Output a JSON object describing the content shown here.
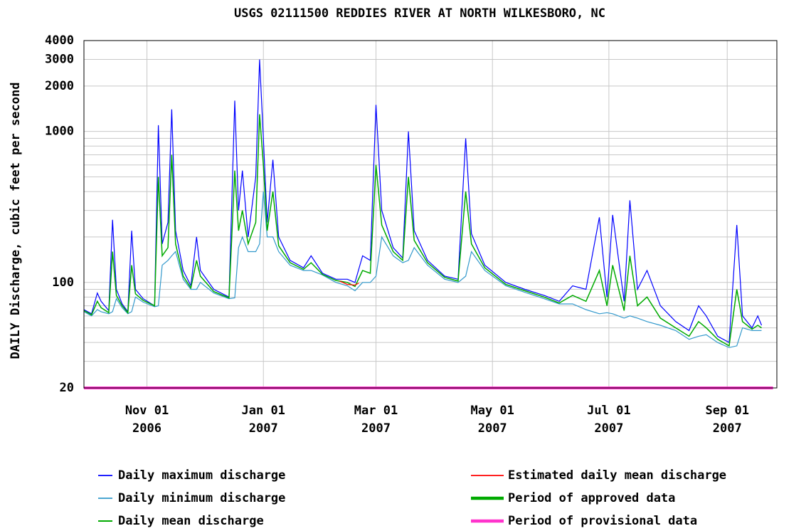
{
  "chart_data": {
    "type": "line",
    "title": "USGS 02111500 REDDIES RIVER AT NORTH WILKESBORO, NC",
    "y_label": "DAILY Discharge, cubic feet per second",
    "log_y": true,
    "grid": true,
    "xlim": [
      "2006-09-29",
      "2007-09-27"
    ],
    "xticks": [
      {
        "value": "2006-11-01",
        "label": "Nov 01\n2006"
      },
      {
        "value": "2007-01-01",
        "label": "Jan 01\n2007"
      },
      {
        "value": "2007-03-01",
        "label": "Mar 01\n2007"
      },
      {
        "value": "2007-05-01",
        "label": "May 01\n2007"
      },
      {
        "value": "2007-07-01",
        "label": "Jul 01\n2007"
      },
      {
        "value": "2007-09-01",
        "label": "Sep 01\n2007"
      }
    ],
    "ylim": [
      20,
      4000
    ],
    "yticks": [
      20,
      100,
      1000,
      2000,
      3000,
      4000
    ],
    "yminor_ticks": [
      30,
      40,
      50,
      60,
      70,
      80,
      90,
      200,
      300,
      400,
      500,
      600,
      700,
      800,
      900
    ],
    "x": [
      "2006-09-29",
      "2006-10-03",
      "2006-10-06",
      "2006-10-08",
      "2006-10-12",
      "2006-10-14",
      "2006-10-16",
      "2006-10-19",
      "2006-10-22",
      "2006-10-24",
      "2006-10-26",
      "2006-10-30",
      "2006-11-05",
      "2006-11-07",
      "2006-11-09",
      "2006-11-12",
      "2006-11-14",
      "2006-11-16",
      "2006-11-20",
      "2006-11-24",
      "2006-11-27",
      "2006-11-29",
      "2006-12-06",
      "2006-12-14",
      "2006-12-17",
      "2006-12-19",
      "2006-12-21",
      "2006-12-24",
      "2006-12-28",
      "2006-12-30",
      "2007-01-01",
      "2007-01-03",
      "2007-01-06",
      "2007-01-09",
      "2007-01-15",
      "2007-01-22",
      "2007-01-26",
      "2007-02-01",
      "2007-02-08",
      "2007-02-14",
      "2007-02-18",
      "2007-02-22",
      "2007-02-26",
      "2007-03-01",
      "2007-03-04",
      "2007-03-10",
      "2007-03-15",
      "2007-03-18",
      "2007-03-21",
      "2007-03-28",
      "2007-04-06",
      "2007-04-13",
      "2007-04-17",
      "2007-04-20",
      "2007-04-27",
      "2007-05-08",
      "2007-05-18",
      "2007-05-28",
      "2007-06-05",
      "2007-06-12",
      "2007-06-19",
      "2007-06-26",
      "2007-06-30",
      "2007-07-03",
      "2007-07-09",
      "2007-07-12",
      "2007-07-16",
      "2007-07-21",
      "2007-07-28",
      "2007-08-05",
      "2007-08-12",
      "2007-08-17",
      "2007-08-21",
      "2007-08-27",
      "2007-09-02",
      "2007-09-06",
      "2007-09-09",
      "2007-09-14",
      "2007-09-17",
      "2007-09-19"
    ],
    "series": [
      {
        "name": "Daily maximum discharge",
        "color": "#0000ff",
        "width": 1.2,
        "values": [
          66,
          62,
          85,
          75,
          65,
          260,
          90,
          72,
          64,
          220,
          90,
          78,
          70,
          1100,
          180,
          250,
          1400,
          220,
          120,
          95,
          200,
          120,
          90,
          80,
          1600,
          300,
          550,
          200,
          500,
          3000,
          900,
          250,
          650,
          200,
          140,
          125,
          150,
          115,
          105,
          105,
          100,
          150,
          140,
          1500,
          300,
          170,
          145,
          1000,
          220,
          140,
          110,
          105,
          900,
          210,
          130,
          100,
          90,
          82,
          75,
          95,
          90,
          270,
          80,
          280,
          75,
          350,
          90,
          120,
          70,
          55,
          48,
          70,
          60,
          44,
          40,
          240,
          60,
          50,
          60,
          52
        ]
      },
      {
        "name": "Daily minimum discharge",
        "color": "#3399cc",
        "width": 1.2,
        "values": [
          64,
          60,
          66,
          64,
          62,
          64,
          78,
          68,
          62,
          64,
          80,
          74,
          69,
          70,
          130,
          140,
          150,
          160,
          105,
          90,
          90,
          100,
          85,
          78,
          79,
          170,
          200,
          160,
          160,
          180,
          400,
          200,
          200,
          160,
          130,
          120,
          120,
          112,
          100,
          95,
          88,
          100,
          100,
          110,
          200,
          150,
          135,
          140,
          170,
          130,
          105,
          100,
          110,
          160,
          120,
          95,
          86,
          78,
          72,
          72,
          66,
          62,
          63,
          62,
          58,
          60,
          58,
          55,
          52,
          48,
          42,
          44,
          45,
          40,
          37,
          38,
          50,
          48,
          48,
          48
        ]
      },
      {
        "name": "Daily mean discharge",
        "color": "#00aa00",
        "width": 1.5,
        "values": [
          65,
          61,
          75,
          68,
          63,
          160,
          82,
          70,
          63,
          130,
          84,
          76,
          70,
          500,
          150,
          170,
          700,
          180,
          110,
          92,
          140,
          110,
          87,
          79,
          550,
          220,
          300,
          180,
          250,
          1300,
          600,
          220,
          400,
          175,
          135,
          122,
          135,
          113,
          103,
          100,
          94,
          120,
          115,
          600,
          240,
          160,
          140,
          500,
          190,
          135,
          108,
          102,
          400,
          180,
          125,
          97,
          88,
          80,
          73,
          82,
          75,
          120,
          70,
          130,
          65,
          150,
          70,
          80,
          58,
          50,
          44,
          55,
          50,
          42,
          38,
          90,
          55,
          49,
          52,
          50
        ]
      },
      {
        "name": "Estimated daily mean discharge",
        "color": "#ff0000",
        "width": 1.2,
        "x": [
          "2007-02-10",
          "2007-02-14",
          "2007-02-18",
          "2007-02-20"
        ],
        "values": [
          102,
          97,
          96,
          99
        ]
      },
      {
        "name": "Period of approved data",
        "color": "#00aa00",
        "width": 4,
        "x": [],
        "values": []
      },
      {
        "name": "Period of provisional data",
        "color": "#ff33cc",
        "width": 4,
        "x": [
          "2006-09-29",
          "2007-09-25"
        ],
        "values": [
          20,
          20
        ]
      }
    ]
  }
}
